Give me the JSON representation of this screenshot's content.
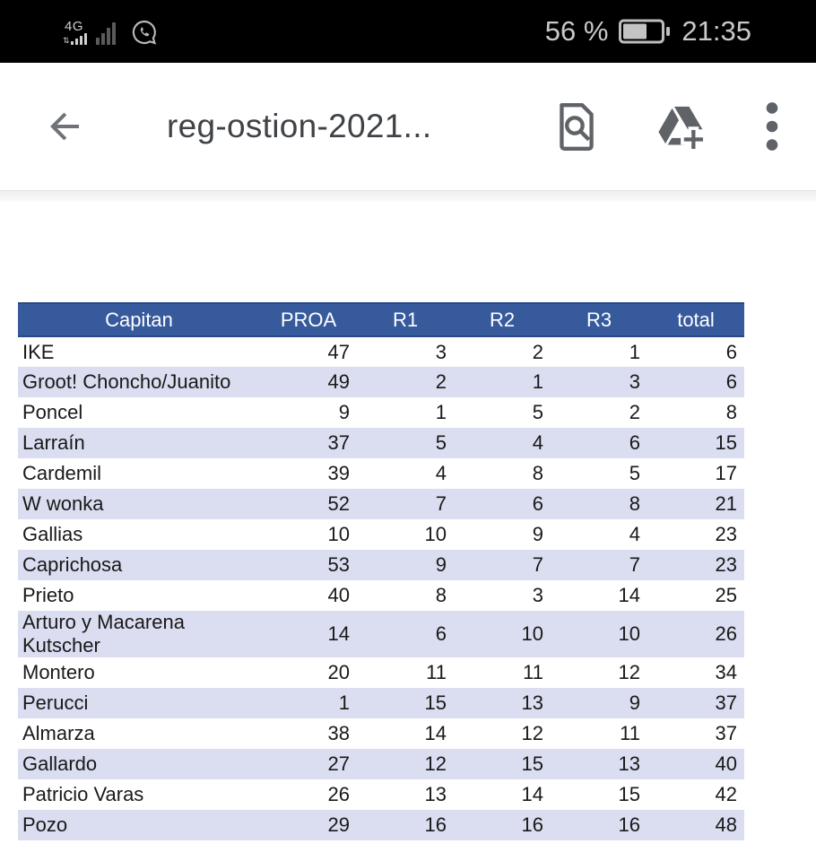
{
  "status_bar": {
    "network_label": "4G",
    "battery_percent": "56 %",
    "time": "21:35"
  },
  "toolbar": {
    "title": "reg-ostion-2021...",
    "back_icon": "back-arrow-icon",
    "actions": [
      "find-in-page-icon",
      "add-to-drive-icon",
      "overflow-menu-icon"
    ]
  },
  "table": {
    "columns": [
      "Capitan",
      "PROA",
      "R1",
      "R2",
      "R3",
      "total"
    ],
    "rows": [
      [
        "IKE",
        47,
        3,
        2,
        1,
        6
      ],
      [
        "Groot! Choncho/Juanito",
        49,
        2,
        1,
        3,
        6
      ],
      [
        "Poncel",
        9,
        1,
        5,
        2,
        8
      ],
      [
        "Larraín",
        37,
        5,
        4,
        6,
        15
      ],
      [
        "Cardemil",
        39,
        4,
        8,
        5,
        17
      ],
      [
        "W wonka",
        52,
        7,
        6,
        8,
        21
      ],
      [
        "Gallias",
        10,
        10,
        9,
        4,
        23
      ],
      [
        "Caprichosa",
        53,
        9,
        7,
        7,
        23
      ],
      [
        "Prieto",
        40,
        8,
        3,
        14,
        25
      ],
      [
        "Arturo y Macarena Kutscher",
        14,
        6,
        10,
        10,
        26
      ],
      [
        "Montero",
        20,
        11,
        11,
        12,
        34
      ],
      [
        "Perucci",
        1,
        15,
        13,
        9,
        37
      ],
      [
        "Almarza",
        38,
        14,
        12,
        11,
        37
      ],
      [
        "Gallardo",
        27,
        12,
        15,
        13,
        40
      ],
      [
        "Patricio Varas",
        26,
        13,
        14,
        15,
        42
      ],
      [
        "Pozo",
        29,
        16,
        16,
        16,
        48
      ]
    ]
  },
  "colors": {
    "status_bar_bg": "#000000",
    "header_blue": "#375a9d",
    "header_border": "#2a4a85",
    "row_alt": "#dadef0",
    "toolbar_icon_gray": "#5f6368"
  }
}
